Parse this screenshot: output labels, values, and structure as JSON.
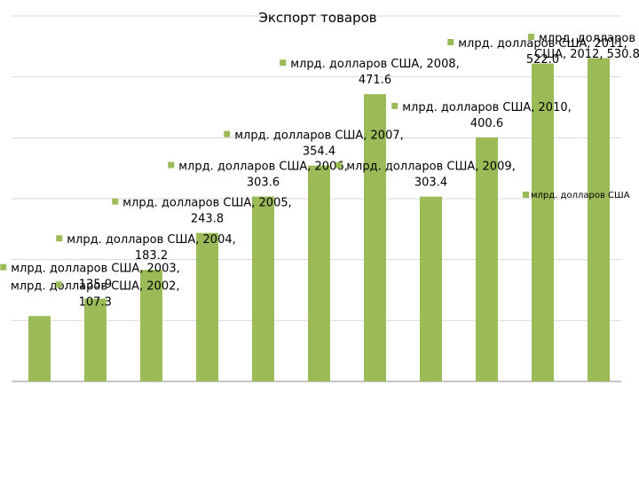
{
  "chart_data": {
    "type": "bar",
    "title": "Экспорт товаров",
    "categories": [
      "2002",
      "2003",
      "2004",
      "2005",
      "2006",
      "2007",
      "2008",
      "2009",
      "2010",
      "2011",
      "2012"
    ],
    "series": [
      {
        "name": "млрд. долларов США",
        "color": "#9BBB59",
        "values": [
          107.3,
          135.9,
          183.2,
          243.8,
          303.6,
          354.4,
          471.6,
          303.4,
          400.6,
          522.0,
          530.8
        ]
      }
    ],
    "data_labels": [
      "млрд. долларов США, 2002,|107.3",
      "млрд. долларов США, 2003,|135.9",
      "млрд. долларов США, 2004,|183.2",
      "млрд. долларов США, 2005,|243.8",
      "млрд. долларов США, 2006,|303.6",
      "млрд. долларов США, 2007,|354.4",
      "млрд. долларов США, 2008,|471.6",
      "млрд. долларов США, 2009,|303.4",
      "млрд. долларов США, 2010,|400.6",
      "млрд. долларов США, 2011,|522.0",
      "млрд. долларов|США, 2012, 530.8"
    ],
    "ylim": [
      0,
      600
    ],
    "grid": true,
    "legend": "right"
  }
}
